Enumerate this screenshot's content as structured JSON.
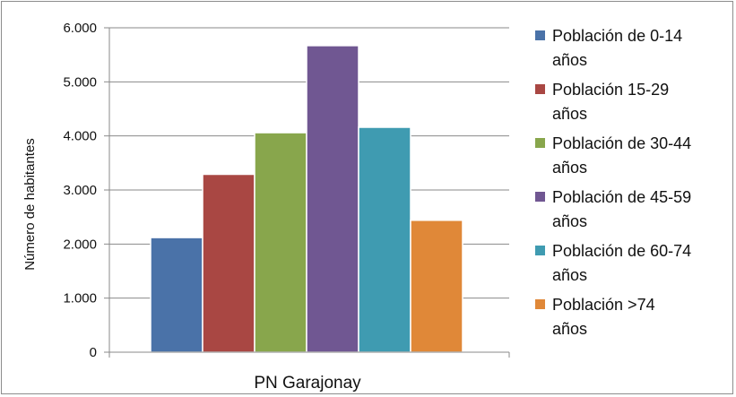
{
  "chart_data": {
    "type": "bar",
    "categories": [
      "PN Garajonay"
    ],
    "series": [
      {
        "name": "Población de 0-14 años",
        "values": [
          2120
        ],
        "color": "#4a72a8"
      },
      {
        "name": "Población 15-29 años",
        "values": [
          3290
        ],
        "color": "#a94743"
      },
      {
        "name": "Población de 30-44 años",
        "values": [
          4060
        ],
        "color": "#88a64c"
      },
      {
        "name": "Población de 45-59 años",
        "values": [
          5670
        ],
        "color": "#705792"
      },
      {
        "name": "Población de 60-74 años",
        "values": [
          4160
        ],
        "color": "#3f9bb1"
      },
      {
        "name": "Población >74 años",
        "values": [
          2440
        ],
        "color": "#e08838"
      }
    ],
    "ylabel": "Número de habitantes",
    "xlabel": "",
    "ylim": [
      0,
      6000
    ],
    "yticks": [
      "0",
      "1.000",
      "2.000",
      "3.000",
      "4.000",
      "5.000",
      "6.000"
    ],
    "grid": true,
    "legend_position": "right"
  }
}
